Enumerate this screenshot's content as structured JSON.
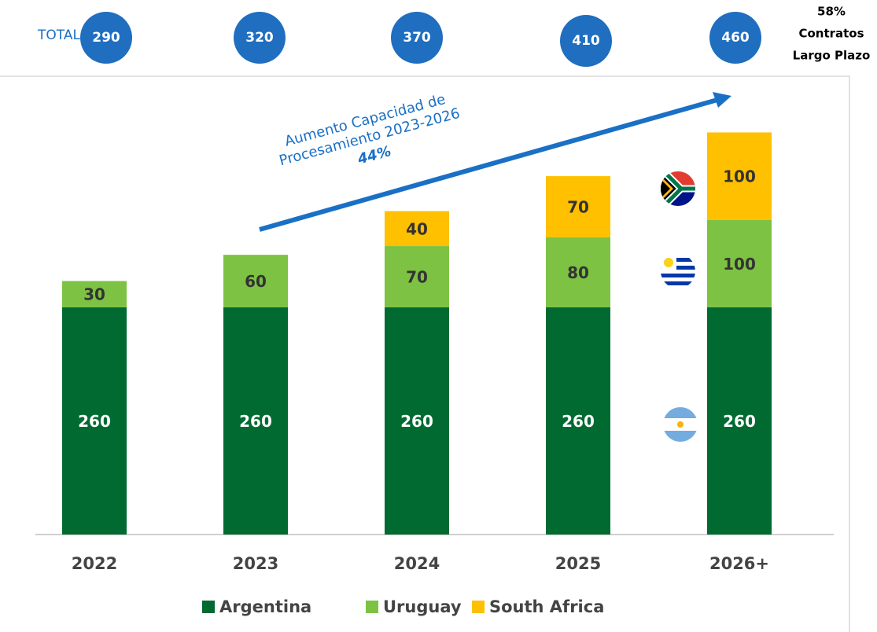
{
  "chart_data": {
    "type": "stacked_bar",
    "categories": [
      "2022",
      "2023",
      "2024",
      "2025",
      "2026+"
    ],
    "series": [
      {
        "name": "Argentina",
        "color": "#006a31",
        "values": [
          260,
          260,
          260,
          260,
          260
        ]
      },
      {
        "name": "Uruguay",
        "color": "#7dc242",
        "values": [
          30,
          60,
          70,
          80,
          100
        ]
      },
      {
        "name": "South Africa",
        "color": "#ffc000",
        "values": [
          null,
          null,
          40,
          70,
          100
        ]
      }
    ],
    "ylim": [
      0,
      500
    ],
    "totals_label": "TOTAL",
    "totals": [
      290,
      320,
      370,
      410,
      460
    ],
    "annotation_lines": [
      "Aumento Capacidad de",
      "Procesamiento 2023-2026"
    ],
    "annotation_value": "44%",
    "note_lines": [
      "58%",
      "Contratos",
      "Largo Plazo"
    ]
  }
}
